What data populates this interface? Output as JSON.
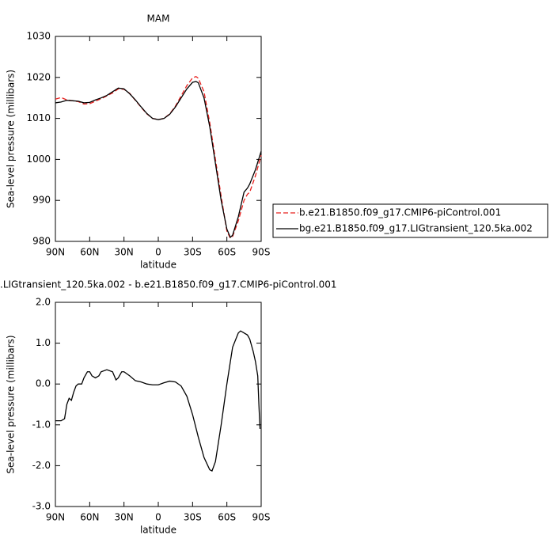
{
  "chart_data": [
    {
      "type": "line",
      "title": "MAM",
      "xlabel": "latitude",
      "ylabel": "Sea-level pressure (millibars)",
      "xlim": [
        90,
        -90
      ],
      "ylim": [
        980,
        1030
      ],
      "xticks": [
        {
          "value": 90,
          "label": "90N"
        },
        {
          "value": 60,
          "label": "60N"
        },
        {
          "value": 30,
          "label": "30N"
        },
        0,
        {
          "value": -30,
          "label": "30S"
        },
        {
          "value": -60,
          "label": "60S"
        },
        {
          "value": -90,
          "label": "90S"
        }
      ],
      "yticks": [
        980,
        990,
        1000,
        1010,
        1020,
        1030
      ],
      "legend": "right",
      "x": [
        90,
        85,
        80,
        75,
        70,
        65,
        60,
        55,
        50,
        45,
        40,
        35,
        30,
        25,
        20,
        15,
        10,
        5,
        0,
        -5,
        -10,
        -15,
        -20,
        -25,
        -30,
        -33,
        -35,
        -40,
        -45,
        -50,
        -55,
        -60,
        -63,
        -65,
        -70,
        -75,
        -78,
        -80,
        -85,
        -90
      ],
      "series": [
        {
          "name": "b.e21.B1850.f09_g17.CMIP6-piControl.001",
          "color": "#e8201e",
          "dashed": true,
          "values": [
            1014.7,
            1015.1,
            1014.5,
            1014.3,
            1014.1,
            1013.5,
            1013.6,
            1014.2,
            1014.8,
            1015.5,
            1016.2,
            1017.2,
            1017.1,
            1016.1,
            1014.4,
            1012.7,
            1011.1,
            1010.0,
            1009.7,
            1010.0,
            1011.1,
            1013.0,
            1015.5,
            1018.0,
            1019.9,
            1020.2,
            1019.8,
            1016.5,
            1009,
            1000,
            991,
            982.5,
            980.8,
            981.2,
            985,
            990,
            991.5,
            992,
            996,
            1001
          ]
        },
        {
          "name": "bg.e21.B1850.f09_g17.LIGtransient_120.5ka.002",
          "color": "#000000",
          "dashed": false,
          "values": [
            1013.8,
            1014.0,
            1014.4,
            1014.3,
            1014.2,
            1013.8,
            1013.9,
            1014.5,
            1015.0,
            1015.6,
            1016.5,
            1017.4,
            1017.2,
            1016.0,
            1014.5,
            1012.8,
            1011.2,
            1010.0,
            1009.7,
            1010.0,
            1011.0,
            1012.8,
            1015.0,
            1017.2,
            1018.8,
            1019.0,
            1018.7,
            1015.0,
            1008,
            999,
            990,
            983,
            981,
            981.5,
            986,
            992,
            993,
            994,
            997.5,
            1002
          ]
        }
      ]
    },
    {
      "type": "line",
      "title": ".LIGtransient_120.5ka.002 - b.e21.B1850.f09_g17.CMIP6-piControl.001",
      "xlabel": "latitude",
      "ylabel": "Sea-level pressure (millibars)",
      "xlim": [
        90,
        -90
      ],
      "ylim": [
        -3,
        2
      ],
      "xticks": [
        {
          "value": 90,
          "label": "90N"
        },
        {
          "value": 60,
          "label": "60N"
        },
        {
          "value": 30,
          "label": "30N"
        },
        0,
        {
          "value": -30,
          "label": "30S"
        },
        {
          "value": -60,
          "label": "60S"
        },
        {
          "value": -90,
          "label": "90S"
        }
      ],
      "yticks": [
        {
          "value": -3,
          "label": "-3.0"
        },
        {
          "value": -2,
          "label": "-2.0"
        },
        {
          "value": -1,
          "label": "-1.0"
        },
        {
          "value": 0,
          "label": "0.0"
        },
        {
          "value": 1,
          "label": "1.0"
        },
        {
          "value": 2,
          "label": "2.0"
        }
      ],
      "x": [
        90,
        85,
        82,
        80,
        78,
        76,
        74,
        72,
        70,
        67,
        65,
        62,
        60,
        58,
        55,
        52,
        50,
        45,
        40,
        37,
        35,
        32,
        30,
        25,
        20,
        15,
        10,
        5,
        0,
        -5,
        -10,
        -15,
        -20,
        -25,
        -30,
        -35,
        -40,
        -45,
        -47,
        -50,
        -55,
        -60,
        -65,
        -70,
        -72,
        -75,
        -78,
        -80,
        -83,
        -85,
        -87,
        -88,
        -89
      ],
      "series": [
        {
          "color": "#000000",
          "dashed": false,
          "values": [
            -0.9,
            -0.9,
            -0.85,
            -0.5,
            -0.35,
            -0.4,
            -0.2,
            -0.05,
            0.0,
            0.0,
            0.15,
            0.3,
            0.3,
            0.2,
            0.15,
            0.2,
            0.3,
            0.35,
            0.3,
            0.1,
            0.15,
            0.3,
            0.3,
            0.2,
            0.08,
            0.05,
            0.0,
            -0.02,
            -0.02,
            0.03,
            0.07,
            0.05,
            -0.05,
            -0.3,
            -0.75,
            -1.3,
            -1.8,
            -2.1,
            -2.13,
            -1.9,
            -1.0,
            0.0,
            0.9,
            1.25,
            1.3,
            1.25,
            1.2,
            1.1,
            0.8,
            0.55,
            0.2,
            -0.5,
            -1.1
          ]
        }
      ]
    }
  ]
}
